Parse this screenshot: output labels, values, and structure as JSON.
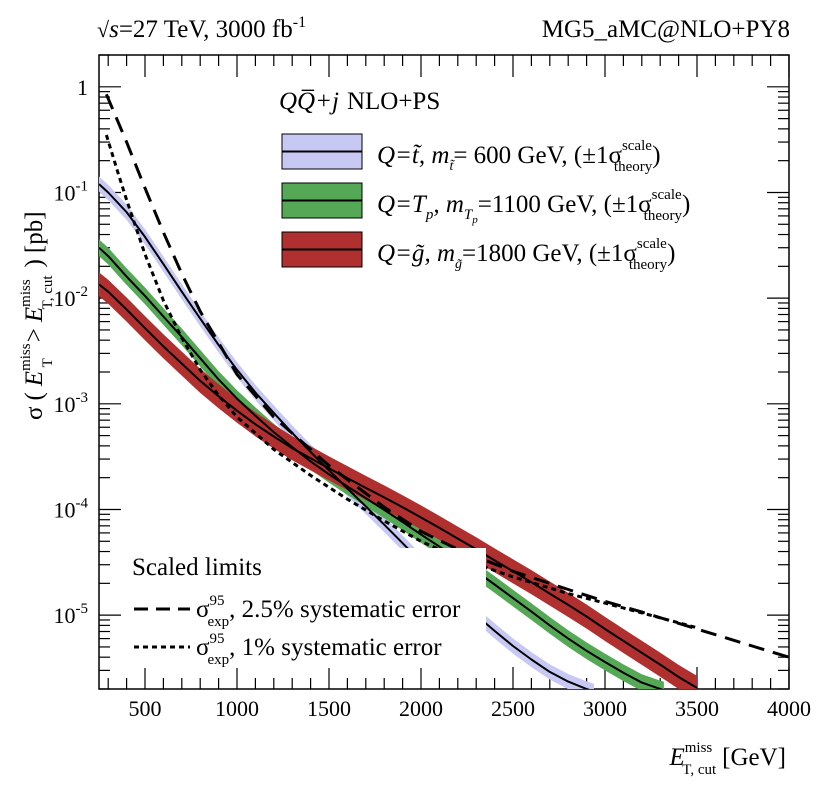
{
  "header": {
    "energy_root": "s",
    "energy_rest": "=27 TeV, 3000 fb",
    "lumi_exp": "-1",
    "generator": "MG5_aMC@NLO+PY8"
  },
  "chart_data": {
    "type": "line",
    "xlabel_main": "E",
    "xlabel_sup": "miss",
    "xlabel_sub": "T, cut",
    "xlabel_unit": "[GeV]",
    "ylabel": {
      "sigma": "σ",
      "open": "(",
      "e1": "E",
      "e1_sup": "miss",
      "e1_sub": "T",
      "gt": ">",
      "e2": "E",
      "e2_sup": "miss",
      "e2_sub": "T, cut",
      "close": ")",
      "unit": "[pb]"
    },
    "x_range": [
      250,
      4000
    ],
    "y_range": [
      2e-06,
      2.0
    ],
    "y_scale": "log",
    "x_ticks": [
      "500",
      "1000",
      "1500",
      "2000",
      "2500",
      "3000",
      "3500",
      "4000"
    ],
    "y_ticks": [
      {
        "value": 1,
        "label": "1",
        "exp": ""
      },
      {
        "value": 0.1,
        "label": "10",
        "exp": "-1"
      },
      {
        "value": 0.01,
        "label": "10",
        "exp": "-2"
      },
      {
        "value": 0.001,
        "label": "10",
        "exp": "-3"
      },
      {
        "value": 0.0001,
        "label": "10",
        "exp": "-4"
      },
      {
        "value": 1e-05,
        "label": "10",
        "exp": "-5"
      }
    ],
    "legend_top": {
      "title_math": "QQ̅+j",
      "title_rest": "NLO+PS",
      "entries": [
        {
          "q": "Q=t̃",
          "m": ", m",
          "m_sub": "t̃",
          "mass": "= 600 GeV, (±1σ",
          "scale": "scale",
          "theory": "theory",
          "end": ")"
        },
        {
          "q": "Q=T",
          "q_sub": "p",
          "m": ", m",
          "m_sub": "T",
          "m_subsub": "p",
          "mass": "=1100 GeV, (±1σ",
          "scale": "scale",
          "theory": "theory",
          "end": ")"
        },
        {
          "q": "Q=g̃",
          "m": ", m",
          "m_sub": "g̃",
          "mass": "=1800 GeV, (±1σ",
          "scale": "scale",
          "theory": "theory",
          "end": ")"
        }
      ]
    },
    "legend_bottom": {
      "title": "Scaled limits",
      "entries": [
        {
          "sigma": "σ",
          "sup": "95",
          "sub": "exp",
          "text": ", 2.5% systematic error",
          "style": "dashed"
        },
        {
          "sigma": "σ",
          "sup": "95",
          "sub": "exp",
          "text": ", 1% systematic error",
          "style": "dotted"
        }
      ]
    },
    "series": [
      {
        "name": "stop 600 GeV",
        "line_color": "#000000",
        "band_color": "#c8c8f5",
        "x": [
          250,
          300,
          400,
          500,
          600,
          700,
          800,
          900,
          1000,
          1100,
          1200,
          1300,
          1400,
          1500,
          1600,
          1700,
          1800,
          1900,
          2000,
          2100,
          2200,
          2300,
          2400,
          2500,
          2600,
          2700,
          2800,
          2900,
          2940
        ],
        "y": [
          0.12,
          0.1,
          0.065,
          0.038,
          0.021,
          0.0115,
          0.0064,
          0.0036,
          0.0021,
          0.00128,
          0.00082,
          0.00053,
          0.00035,
          0.000235,
          0.000158,
          0.000107,
          7.2e-05,
          4.8e-05,
          3.2e-05,
          2.15e-05,
          1.45e-05,
          1e-05,
          7.1e-06,
          5.1e-06,
          3.8e-06,
          2.9e-06,
          2.35e-06,
          2e-06,
          1.9e-06
        ],
        "band_rel": 0.18
      },
      {
        "name": "Tp 1100 GeV",
        "line_color": "#000000",
        "band_color": "#55a855",
        "x": [
          250,
          300,
          400,
          500,
          600,
          700,
          800,
          900,
          1000,
          1100,
          1200,
          1300,
          1400,
          1500,
          1600,
          1700,
          1800,
          1900,
          2000,
          2100,
          2200,
          2300,
          2400,
          2500,
          2600,
          2700,
          2800,
          2900,
          3000,
          3100,
          3200,
          3300,
          3320
        ],
        "y": [
          0.03,
          0.025,
          0.016,
          0.0105,
          0.0067,
          0.0043,
          0.0027,
          0.0017,
          0.00112,
          0.00077,
          0.00054,
          0.00039,
          0.000285,
          0.000215,
          0.000165,
          0.000128,
          9.9e-05,
          7.6e-05,
          5.8e-05,
          4.45e-05,
          3.4e-05,
          2.6e-05,
          1.95e-05,
          1.45e-05,
          1.08e-05,
          8e-06,
          6e-06,
          4.6e-06,
          3.6e-06,
          2.85e-06,
          2.3e-06,
          2e-06,
          1.95e-06
        ],
        "band_rel": 0.2
      },
      {
        "name": "gluino 1800 GeV",
        "line_color": "#000000",
        "band_color": "#b03030",
        "x": [
          250,
          300,
          400,
          500,
          600,
          700,
          800,
          900,
          1000,
          1100,
          1200,
          1300,
          1400,
          1500,
          1600,
          1700,
          1800,
          1900,
          2000,
          2100,
          2200,
          2300,
          2400,
          2500,
          2600,
          2700,
          2800,
          2900,
          3000,
          3100,
          3200,
          3300,
          3400,
          3500
        ],
        "y": [
          0.0135,
          0.0115,
          0.0078,
          0.0052,
          0.0035,
          0.0024,
          0.00165,
          0.00118,
          0.00086,
          0.00064,
          0.00049,
          0.00038,
          0.000305,
          0.000245,
          0.000198,
          0.00016,
          0.00013,
          0.000105,
          8.4e-05,
          6.7e-05,
          5.3e-05,
          4.2e-05,
          3.3e-05,
          2.6e-05,
          2.05e-05,
          1.6e-05,
          1.25e-05,
          9.7e-06,
          7.4e-06,
          5.7e-06,
          4.4e-06,
          3.4e-06,
          2.6e-06,
          2.05e-06
        ],
        "band_rel": 0.3
      },
      {
        "name": "limit 2.5% syst",
        "line_color": "#000000",
        "style": "dashed",
        "x": [
          290,
          400,
          500,
          600,
          700,
          800,
          1000,
          1200,
          1500,
          1800,
          2000,
          2200,
          2500,
          2800,
          3000,
          3200,
          3500,
          3800,
          4000
        ],
        "y": [
          0.85,
          0.3,
          0.11,
          0.042,
          0.017,
          0.0075,
          0.0019,
          0.00075,
          0.00026,
          0.000105,
          6.2e-05,
          4.2e-05,
          2.6e-05,
          1.75e-05,
          1.35e-05,
          1.07e-05,
          7.4e-06,
          5.1e-06,
          4e-06
        ]
      },
      {
        "name": "limit 1% syst",
        "line_color": "#000000",
        "style": "dotted",
        "x": [
          290,
          350,
          400,
          500,
          600,
          700,
          800,
          900,
          1000,
          1200,
          1400,
          1600,
          1800,
          2000,
          2200,
          2500,
          2800,
          3000,
          3200,
          3500
        ],
        "y": [
          0.35,
          0.16,
          0.085,
          0.026,
          0.0095,
          0.0042,
          0.0021,
          0.0012,
          0.00075,
          0.00037,
          0.00021,
          0.000125,
          7.8e-05,
          5e-05,
          3.5e-05,
          2.3e-05,
          1.6e-05,
          1.3e-05,
          1.05e-05,
          7.6e-06
        ]
      }
    ]
  }
}
